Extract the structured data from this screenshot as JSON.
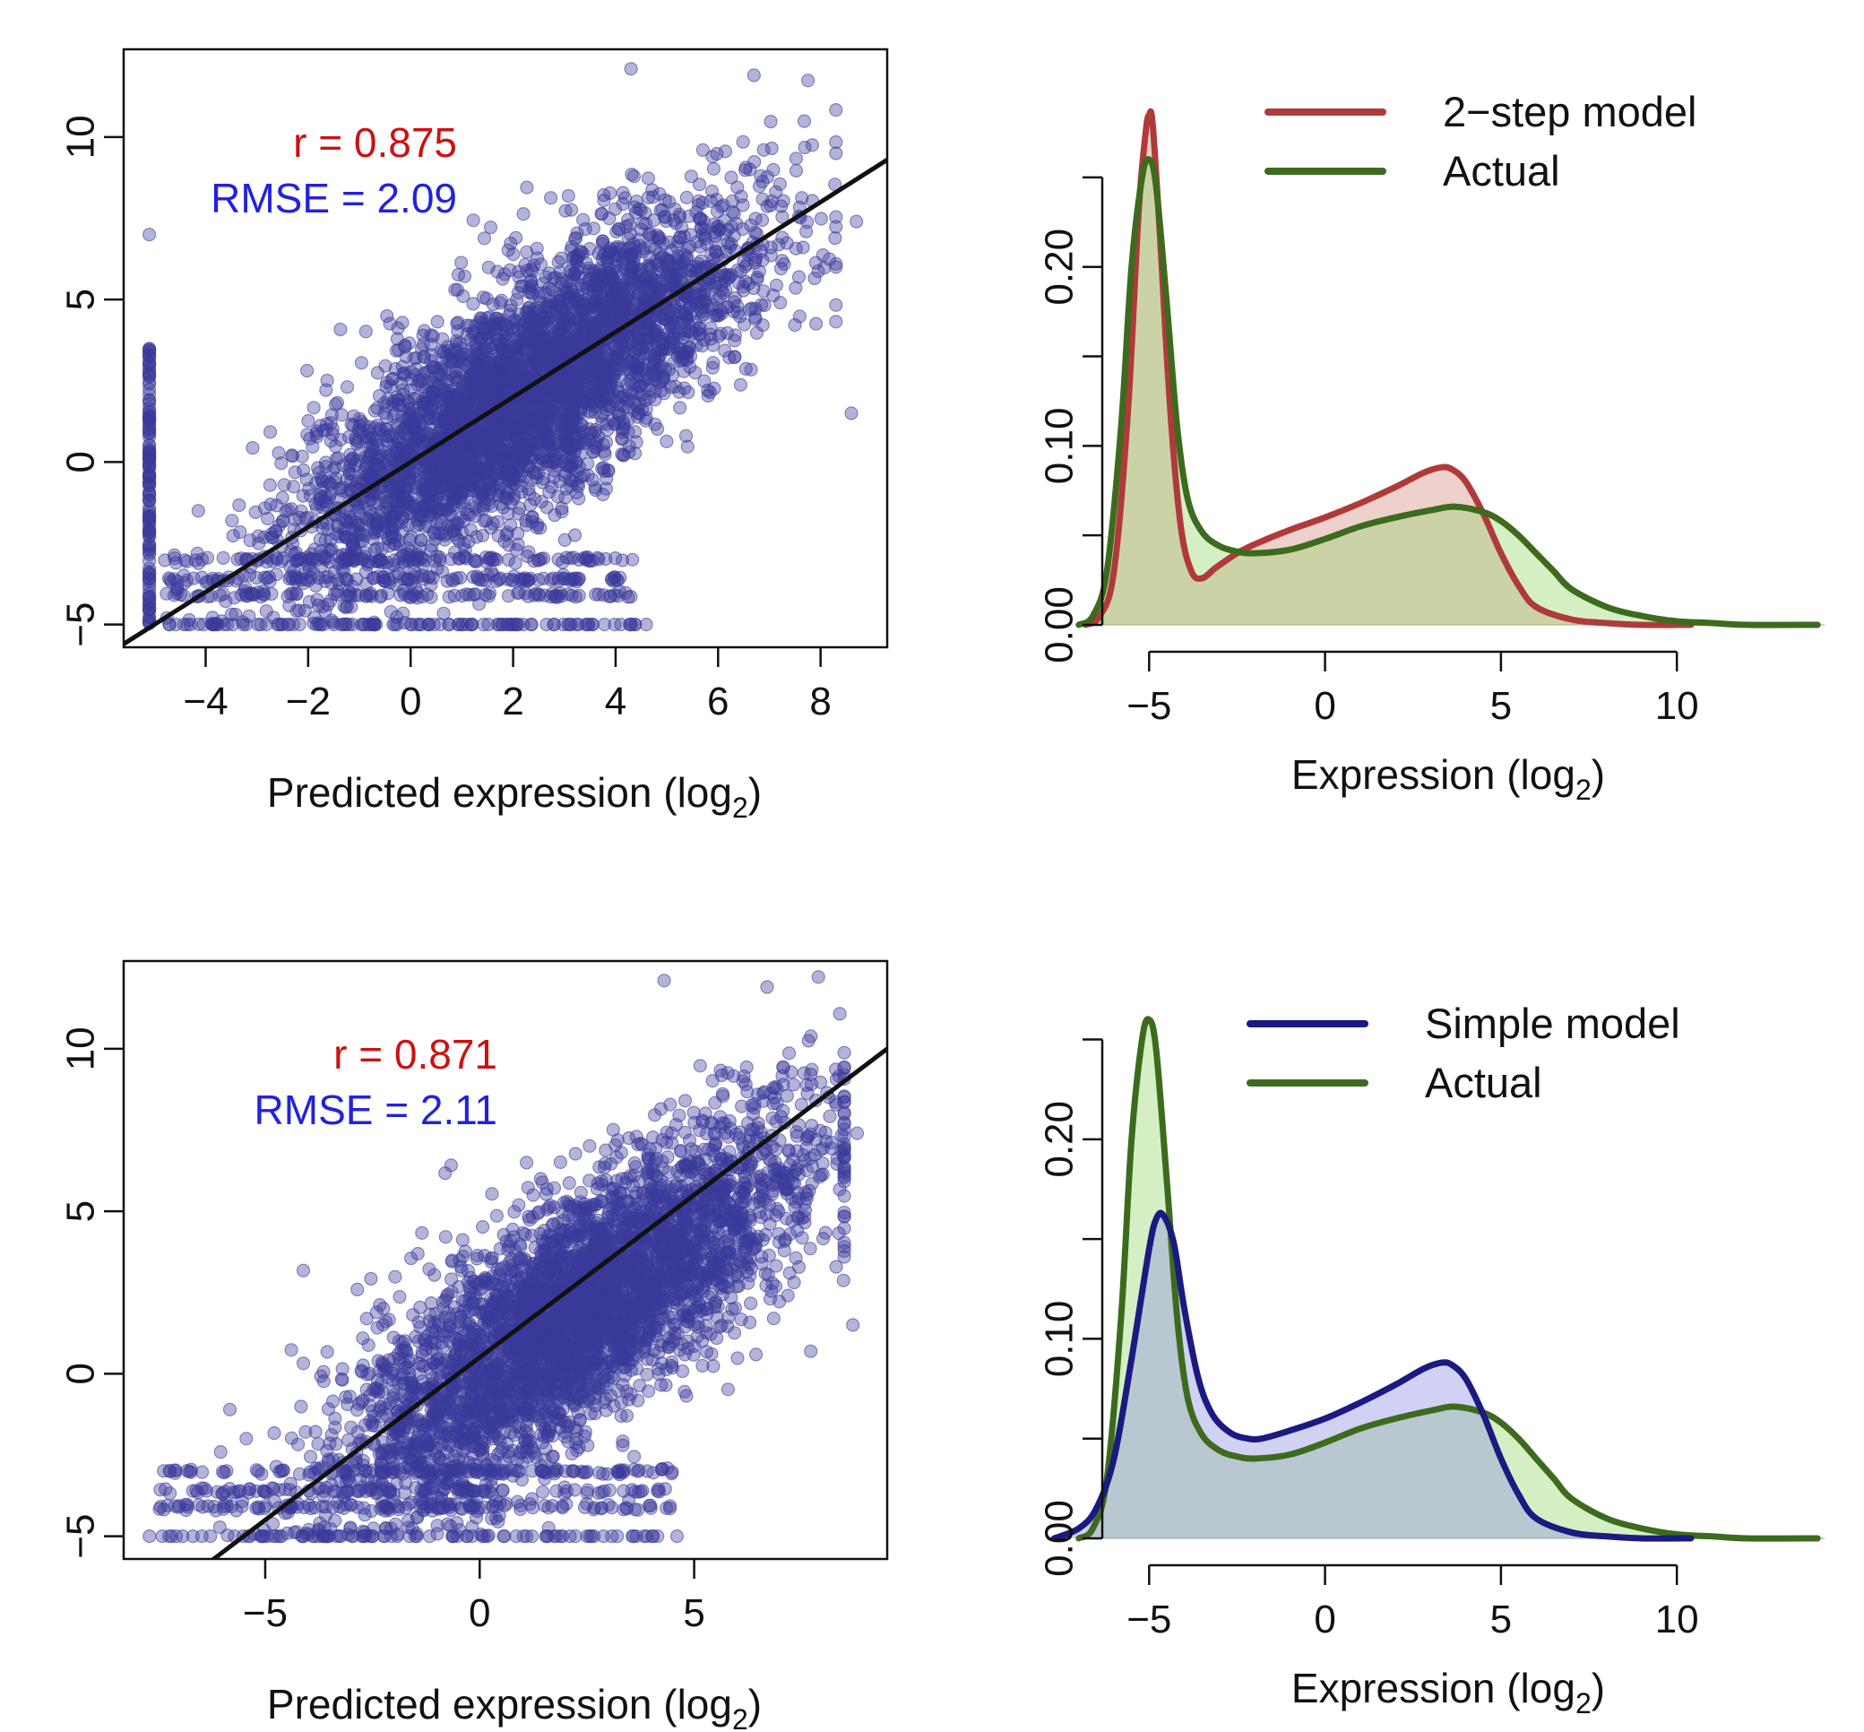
{
  "chart_data": [
    {
      "id": "scatter-top",
      "type": "scatter",
      "title": "",
      "xlabel": "Predicted expression (log",
      "xlabel_sub": "2",
      "xlabel_close": ")",
      "ylabel": "",
      "xlim": [
        -5.6,
        9.3
      ],
      "ylim": [
        -5.7,
        12.7
      ],
      "xticks": [
        -4,
        -2,
        0,
        2,
        4,
        6,
        8
      ],
      "yticks": [
        -5,
        0,
        5,
        10
      ],
      "xtick_labels": [
        "−4",
        "−2",
        "0",
        "2",
        "4",
        "6",
        "8"
      ],
      "ytick_labels": [
        "−5",
        "0",
        "5",
        "10"
      ],
      "stats": {
        "r": "r = 0.875",
        "rmse": "RMSE = 2.09"
      },
      "fit_line": {
        "slope": 1.0,
        "intercept": 0.0
      },
      "point_color": "#3b3b9a",
      "point_cloud": {
        "n": 4200,
        "slope": 0.96,
        "noise_sd": 2.05,
        "floor_y": -5.0,
        "floor_frac": 0.1,
        "x_center": 2.2,
        "x_sd": 2.2,
        "left_column_x": -5.1
      },
      "notable_points": [
        {
          "x": 4.3,
          "y": 12.1
        },
        {
          "x": 6.7,
          "y": 11.9
        },
        {
          "x": 8.7,
          "y": 7.4
        },
        {
          "x": 8.6,
          "y": 1.5
        },
        {
          "x": -5.1,
          "y": 7.0
        },
        {
          "x": 4.6,
          "y": -5.0
        }
      ]
    },
    {
      "id": "density-top",
      "type": "area",
      "title": "",
      "xlabel": "Expression (log",
      "xlabel_sub": "2",
      "xlabel_close": ")",
      "ylabel": "",
      "xlim": [
        -7.3,
        14.3
      ],
      "ylim": [
        0,
        0.27
      ],
      "xticks": [
        -5,
        0,
        5,
        10
      ],
      "yticks": [
        0.0,
        0.05,
        0.1,
        0.15,
        0.2,
        0.25
      ],
      "ytick_labels_shown": {
        "0": "0.00",
        "0.1": "0.10",
        "0.2": "0.20"
      },
      "xtick_labels": [
        "−5",
        "0",
        "5",
        "10"
      ],
      "legend": [
        {
          "label": "2−step model",
          "color": "#b03a3a"
        },
        {
          "label": "Actual",
          "color": "#3d6b1e"
        }
      ],
      "legend_position": "top-right",
      "series": [
        {
          "name": "2−step model",
          "color": "#b03a3a",
          "fill": "rgba(205,120,110,0.35)",
          "x": [
            -6.8,
            -6.4,
            -6.0,
            -5.6,
            -5.3,
            -5.1,
            -5.0,
            -4.9,
            -4.7,
            -4.4,
            -4.1,
            -3.8,
            -3.5,
            -3.1,
            -2.5,
            -2.0,
            -1.0,
            0.0,
            1.0,
            2.0,
            2.8,
            3.3,
            3.6,
            4.0,
            4.5,
            5.0,
            5.5,
            6.0,
            7.0,
            8.0,
            9.0,
            10.4
          ],
          "y": [
            0.0,
            0.005,
            0.03,
            0.12,
            0.23,
            0.275,
            0.285,
            0.28,
            0.22,
            0.12,
            0.055,
            0.03,
            0.026,
            0.032,
            0.04,
            0.045,
            0.053,
            0.06,
            0.068,
            0.077,
            0.085,
            0.088,
            0.087,
            0.08,
            0.062,
            0.04,
            0.022,
            0.01,
            0.003,
            0.001,
            0.0,
            0.0
          ]
        },
        {
          "name": "Actual",
          "color": "#3d6b1e",
          "fill": "rgba(150,215,110,0.40)",
          "x": [
            -7.0,
            -6.6,
            -6.2,
            -5.8,
            -5.5,
            -5.2,
            -5.0,
            -4.8,
            -4.5,
            -4.2,
            -3.9,
            -3.5,
            -3.0,
            -2.5,
            -2.0,
            -1.0,
            0.0,
            1.0,
            2.0,
            3.0,
            3.7,
            4.5,
            5.0,
            5.5,
            6.0,
            6.5,
            7.0,
            8.0,
            9.0,
            10.0,
            11.0,
            12.0,
            14.0
          ],
          "y": [
            0.0,
            0.005,
            0.03,
            0.11,
            0.2,
            0.25,
            0.26,
            0.245,
            0.18,
            0.11,
            0.07,
            0.052,
            0.044,
            0.041,
            0.04,
            0.042,
            0.048,
            0.055,
            0.06,
            0.064,
            0.066,
            0.063,
            0.058,
            0.05,
            0.04,
            0.03,
            0.02,
            0.01,
            0.005,
            0.002,
            0.001,
            0.0,
            0.0
          ]
        }
      ]
    },
    {
      "id": "scatter-bottom",
      "type": "scatter",
      "title": "",
      "xlabel": "Predicted expression (log",
      "xlabel_sub": "2",
      "xlabel_close": ")",
      "ylabel": "",
      "xlim": [
        -8.3,
        9.5
      ],
      "ylim": [
        -5.7,
        12.7
      ],
      "xticks": [
        -5,
        0,
        5
      ],
      "yticks": [
        -5,
        0,
        5,
        10
      ],
      "xtick_labels": [
        "−5",
        "0",
        "5"
      ],
      "ytick_labels": [
        "−5",
        "0",
        "5",
        "10"
      ],
      "stats": {
        "r": "r = 0.871",
        "rmse": "RMSE = 2.11"
      },
      "fit_line": {
        "slope": 1.0,
        "intercept": 0.5
      },
      "point_color": "#3b3b9a",
      "point_cloud": {
        "n": 4200,
        "slope": 0.85,
        "noise_sd": 2.1,
        "floor_y": -5.0,
        "floor_frac": 0.1,
        "x_center": 2.2,
        "x_sd": 2.6,
        "left_column_x": null
      },
      "notable_points": [
        {
          "x": 4.3,
          "y": 12.1
        },
        {
          "x": 6.7,
          "y": 11.9
        },
        {
          "x": 8.8,
          "y": 7.4
        },
        {
          "x": 8.7,
          "y": 1.5
        },
        {
          "x": -7.7,
          "y": -5.0
        },
        {
          "x": 4.6,
          "y": -5.0
        }
      ]
    },
    {
      "id": "density-bottom",
      "type": "area",
      "title": "",
      "xlabel": "Expression (log",
      "xlabel_sub": "2",
      "xlabel_close": ")",
      "ylabel": "",
      "xlim": [
        -7.3,
        14.3
      ],
      "ylim": [
        0,
        0.27
      ],
      "xticks": [
        -5,
        0,
        5,
        10
      ],
      "yticks": [
        0.0,
        0.05,
        0.1,
        0.15,
        0.2,
        0.25
      ],
      "ytick_labels_shown": {
        "0": "0.00",
        "0.1": "0.10",
        "0.2": "0.20"
      },
      "xtick_labels": [
        "−5",
        "0",
        "5",
        "10"
      ],
      "legend": [
        {
          "label": "Simple model",
          "color": "#1a1a80"
        },
        {
          "label": "Actual",
          "color": "#3d6b1e"
        }
      ],
      "legend_position": "top-right",
      "series": [
        {
          "name": "Actual",
          "color": "#3d6b1e",
          "fill": "rgba(150,215,110,0.40)",
          "x": [
            -7.0,
            -6.6,
            -6.2,
            -5.8,
            -5.5,
            -5.2,
            -5.0,
            -4.8,
            -4.5,
            -4.2,
            -3.9,
            -3.5,
            -3.0,
            -2.5,
            -2.0,
            -1.0,
            0.0,
            1.0,
            2.0,
            3.0,
            3.7,
            4.5,
            5.0,
            5.5,
            6.0,
            6.5,
            7.0,
            8.0,
            9.0,
            10.0,
            11.0,
            12.0,
            14.0
          ],
          "y": [
            0.0,
            0.005,
            0.03,
            0.11,
            0.2,
            0.25,
            0.26,
            0.245,
            0.18,
            0.11,
            0.07,
            0.052,
            0.044,
            0.041,
            0.04,
            0.042,
            0.048,
            0.055,
            0.06,
            0.064,
            0.066,
            0.063,
            0.058,
            0.05,
            0.04,
            0.03,
            0.02,
            0.01,
            0.005,
            0.002,
            0.001,
            0.0,
            0.0
          ]
        },
        {
          "name": "Simple model",
          "color": "#1a1a80",
          "fill": "rgba(140,140,225,0.40)",
          "x": [
            -7.7,
            -7.0,
            -6.5,
            -6.0,
            -5.5,
            -5.0,
            -4.8,
            -4.6,
            -4.3,
            -4.0,
            -3.6,
            -3.2,
            -2.7,
            -2.2,
            -1.8,
            -1.0,
            0.0,
            1.0,
            2.0,
            2.8,
            3.3,
            3.6,
            4.0,
            4.5,
            5.0,
            5.5,
            6.0,
            7.0,
            8.0,
            9.0,
            10.4
          ],
          "y": [
            0.0,
            0.005,
            0.015,
            0.04,
            0.09,
            0.145,
            0.16,
            0.162,
            0.148,
            0.115,
            0.08,
            0.062,
            0.053,
            0.05,
            0.05,
            0.054,
            0.06,
            0.068,
            0.077,
            0.085,
            0.088,
            0.087,
            0.08,
            0.062,
            0.04,
            0.022,
            0.01,
            0.003,
            0.001,
            0.0,
            0.0
          ]
        }
      ]
    }
  ]
}
